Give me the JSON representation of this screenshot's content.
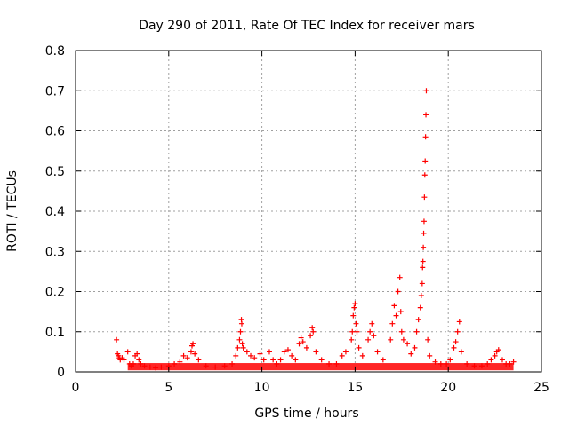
{
  "chart_data": {
    "type": "scatter",
    "title": "Day 290 of 2011, Rate Of TEC Index for receiver mars",
    "xlabel": "GPS time / hours",
    "ylabel": "ROTI / TECUs",
    "xlim": [
      0,
      25
    ],
    "ylim": [
      0,
      0.8
    ],
    "x_ticks": [
      "0",
      "5",
      "10",
      "15",
      "20",
      "25"
    ],
    "y_ticks": [
      "0",
      "0.1",
      "0.2",
      "0.3",
      "0.4",
      "0.5",
      "0.6",
      "0.7",
      "0.8"
    ],
    "grid": true,
    "marker": "plus",
    "series": [
      {
        "color": "#ff0000",
        "points": [
          [
            2.2,
            0.08
          ],
          [
            2.25,
            0.045
          ],
          [
            2.3,
            0.04
          ],
          [
            2.35,
            0.035
          ],
          [
            2.4,
            0.03
          ],
          [
            2.5,
            0.035
          ],
          [
            2.6,
            0.03
          ],
          [
            2.8,
            0.05
          ],
          [
            2.9,
            0.02
          ],
          [
            3.0,
            0.015
          ],
          [
            3.1,
            0.02
          ],
          [
            3.2,
            0.04
          ],
          [
            3.3,
            0.045
          ],
          [
            3.4,
            0.03
          ],
          [
            3.5,
            0.02
          ],
          [
            3.7,
            0.015
          ],
          [
            4.0,
            0.012
          ],
          [
            4.3,
            0.01
          ],
          [
            4.6,
            0.012
          ],
          [
            5.0,
            0.015
          ],
          [
            5.3,
            0.02
          ],
          [
            5.6,
            0.025
          ],
          [
            5.8,
            0.04
          ],
          [
            6.0,
            0.035
          ],
          [
            6.2,
            0.05
          ],
          [
            6.25,
            0.065
          ],
          [
            6.3,
            0.07
          ],
          [
            6.4,
            0.045
          ],
          [
            6.6,
            0.03
          ],
          [
            7.0,
            0.015
          ],
          [
            7.5,
            0.012
          ],
          [
            8.0,
            0.015
          ],
          [
            8.4,
            0.02
          ],
          [
            8.6,
            0.04
          ],
          [
            8.7,
            0.06
          ],
          [
            8.8,
            0.08
          ],
          [
            8.85,
            0.1
          ],
          [
            8.9,
            0.13
          ],
          [
            8.92,
            0.12
          ],
          [
            8.95,
            0.07
          ],
          [
            9.0,
            0.06
          ],
          [
            9.2,
            0.05
          ],
          [
            9.4,
            0.04
          ],
          [
            9.6,
            0.035
          ],
          [
            9.9,
            0.045
          ],
          [
            10.1,
            0.03
          ],
          [
            10.4,
            0.05
          ],
          [
            10.6,
            0.03
          ],
          [
            10.8,
            0.02
          ],
          [
            11.0,
            0.03
          ],
          [
            11.2,
            0.05
          ],
          [
            11.4,
            0.055
          ],
          [
            11.6,
            0.04
          ],
          [
            11.8,
            0.03
          ],
          [
            12.0,
            0.07
          ],
          [
            12.1,
            0.085
          ],
          [
            12.2,
            0.075
          ],
          [
            12.4,
            0.06
          ],
          [
            12.6,
            0.09
          ],
          [
            12.7,
            0.11
          ],
          [
            12.75,
            0.1
          ],
          [
            12.9,
            0.05
          ],
          [
            13.2,
            0.03
          ],
          [
            13.6,
            0.02
          ],
          [
            14.0,
            0.02
          ],
          [
            14.3,
            0.04
          ],
          [
            14.5,
            0.05
          ],
          [
            14.8,
            0.08
          ],
          [
            14.85,
            0.1
          ],
          [
            14.9,
            0.14
          ],
          [
            14.95,
            0.16
          ],
          [
            15.0,
            0.17
          ],
          [
            15.05,
            0.12
          ],
          [
            15.1,
            0.1
          ],
          [
            15.2,
            0.06
          ],
          [
            15.4,
            0.04
          ],
          [
            15.7,
            0.08
          ],
          [
            15.8,
            0.1
          ],
          [
            15.9,
            0.12
          ],
          [
            16.0,
            0.09
          ],
          [
            16.2,
            0.05
          ],
          [
            16.5,
            0.03
          ],
          [
            16.9,
            0.08
          ],
          [
            17.0,
            0.12
          ],
          [
            17.1,
            0.165
          ],
          [
            17.2,
            0.14
          ],
          [
            17.3,
            0.2
          ],
          [
            17.4,
            0.235
          ],
          [
            17.45,
            0.15
          ],
          [
            17.5,
            0.1
          ],
          [
            17.6,
            0.08
          ],
          [
            17.8,
            0.07
          ],
          [
            18.0,
            0.045
          ],
          [
            18.2,
            0.06
          ],
          [
            18.3,
            0.1
          ],
          [
            18.4,
            0.13
          ],
          [
            18.5,
            0.16
          ],
          [
            18.55,
            0.19
          ],
          [
            18.6,
            0.22
          ],
          [
            18.62,
            0.26
          ],
          [
            18.64,
            0.275
          ],
          [
            18.66,
            0.31
          ],
          [
            18.68,
            0.345
          ],
          [
            18.7,
            0.375
          ],
          [
            18.72,
            0.435
          ],
          [
            18.74,
            0.49
          ],
          [
            18.76,
            0.525
          ],
          [
            18.78,
            0.585
          ],
          [
            18.8,
            0.64
          ],
          [
            18.82,
            0.7
          ],
          [
            18.9,
            0.08
          ],
          [
            19.0,
            0.04
          ],
          [
            19.3,
            0.025
          ],
          [
            19.6,
            0.02
          ],
          [
            19.9,
            0.02
          ],
          [
            20.1,
            0.03
          ],
          [
            20.3,
            0.06
          ],
          [
            20.4,
            0.075
          ],
          [
            20.5,
            0.1
          ],
          [
            20.6,
            0.125
          ],
          [
            20.7,
            0.05
          ],
          [
            21.0,
            0.02
          ],
          [
            21.4,
            0.015
          ],
          [
            21.8,
            0.015
          ],
          [
            22.1,
            0.02
          ],
          [
            22.3,
            0.03
          ],
          [
            22.5,
            0.04
          ],
          [
            22.6,
            0.05
          ],
          [
            22.7,
            0.055
          ],
          [
            22.9,
            0.03
          ],
          [
            23.1,
            0.02
          ],
          [
            23.3,
            0.02
          ],
          [
            23.5,
            0.025
          ]
        ]
      }
    ]
  }
}
